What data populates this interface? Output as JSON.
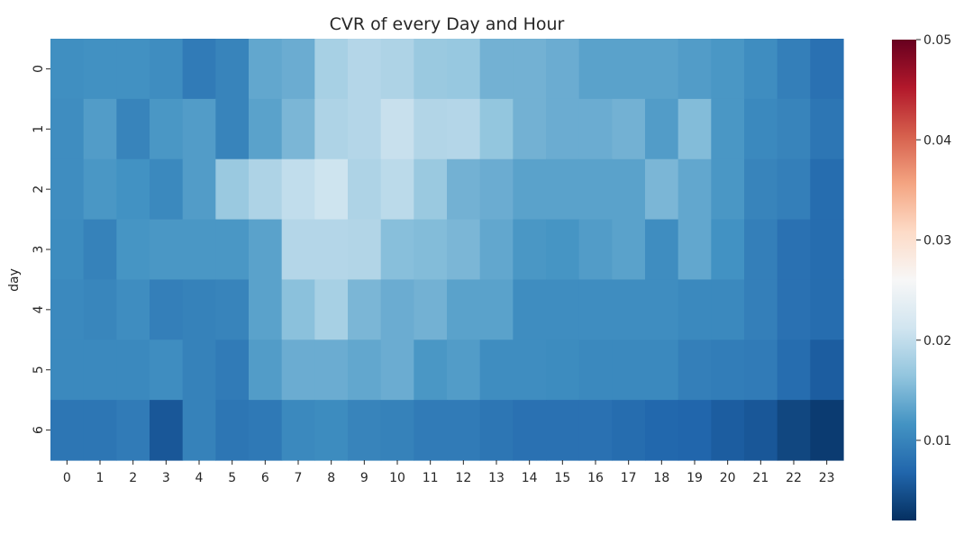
{
  "chart_data": {
    "type": "heatmap",
    "title": "CVR of every Day and Hour",
    "xlabel": "",
    "ylabel": "day",
    "x": [
      "0",
      "1",
      "2",
      "3",
      "4",
      "5",
      "6",
      "7",
      "8",
      "9",
      "10",
      "11",
      "12",
      "13",
      "14",
      "15",
      "16",
      "17",
      "18",
      "19",
      "20",
      "21",
      "22",
      "23"
    ],
    "y": [
      "0",
      "1",
      "2",
      "3",
      "4",
      "5",
      "6"
    ],
    "values": [
      [
        0.0112,
        0.0114,
        0.0114,
        0.011,
        0.009,
        0.01,
        0.0135,
        0.014,
        0.018,
        0.019,
        0.0185,
        0.017,
        0.0168,
        0.0145,
        0.0145,
        0.014,
        0.013,
        0.013,
        0.013,
        0.0125,
        0.012,
        0.011,
        0.0095,
        0.008
      ],
      [
        0.011,
        0.0125,
        0.01,
        0.012,
        0.0125,
        0.01,
        0.013,
        0.015,
        0.0185,
        0.019,
        0.0205,
        0.0188,
        0.019,
        0.0165,
        0.0145,
        0.014,
        0.014,
        0.0145,
        0.0125,
        0.0155,
        0.012,
        0.0105,
        0.01,
        0.0085
      ],
      [
        0.011,
        0.012,
        0.0115,
        0.0105,
        0.0125,
        0.017,
        0.0185,
        0.02,
        0.021,
        0.0185,
        0.0195,
        0.017,
        0.0145,
        0.014,
        0.013,
        0.013,
        0.013,
        0.013,
        0.015,
        0.0135,
        0.012,
        0.01,
        0.0095,
        0.0075
      ],
      [
        0.0108,
        0.0098,
        0.0118,
        0.012,
        0.012,
        0.012,
        0.013,
        0.019,
        0.019,
        0.0188,
        0.0158,
        0.0155,
        0.015,
        0.0135,
        0.012,
        0.0118,
        0.0125,
        0.013,
        0.011,
        0.0135,
        0.0115,
        0.0095,
        0.008,
        0.0075
      ],
      [
        0.0105,
        0.0102,
        0.011,
        0.0095,
        0.0098,
        0.01,
        0.013,
        0.016,
        0.018,
        0.015,
        0.014,
        0.0145,
        0.013,
        0.013,
        0.011,
        0.011,
        0.011,
        0.011,
        0.011,
        0.0105,
        0.0105,
        0.0095,
        0.008,
        0.0075
      ],
      [
        0.0105,
        0.0105,
        0.0105,
        0.011,
        0.0098,
        0.009,
        0.0125,
        0.014,
        0.014,
        0.0135,
        0.014,
        0.012,
        0.0125,
        0.011,
        0.011,
        0.0108,
        0.0105,
        0.0105,
        0.0105,
        0.0095,
        0.0092,
        0.009,
        0.0075,
        0.006
      ],
      [
        0.0085,
        0.0085,
        0.009,
        0.0055,
        0.0098,
        0.0085,
        0.0088,
        0.0105,
        0.0108,
        0.01,
        0.0098,
        0.009,
        0.009,
        0.0085,
        0.008,
        0.008,
        0.008,
        0.0075,
        0.007,
        0.0068,
        0.006,
        0.0055,
        0.004,
        0.003
      ]
    ],
    "colorbar": {
      "min": 0.002,
      "max": 0.05,
      "ticks": [
        "0.01",
        "0.02",
        "0.03",
        "0.04",
        "0.05"
      ],
      "colormap": "RdBu_r"
    },
    "grid": false
  }
}
